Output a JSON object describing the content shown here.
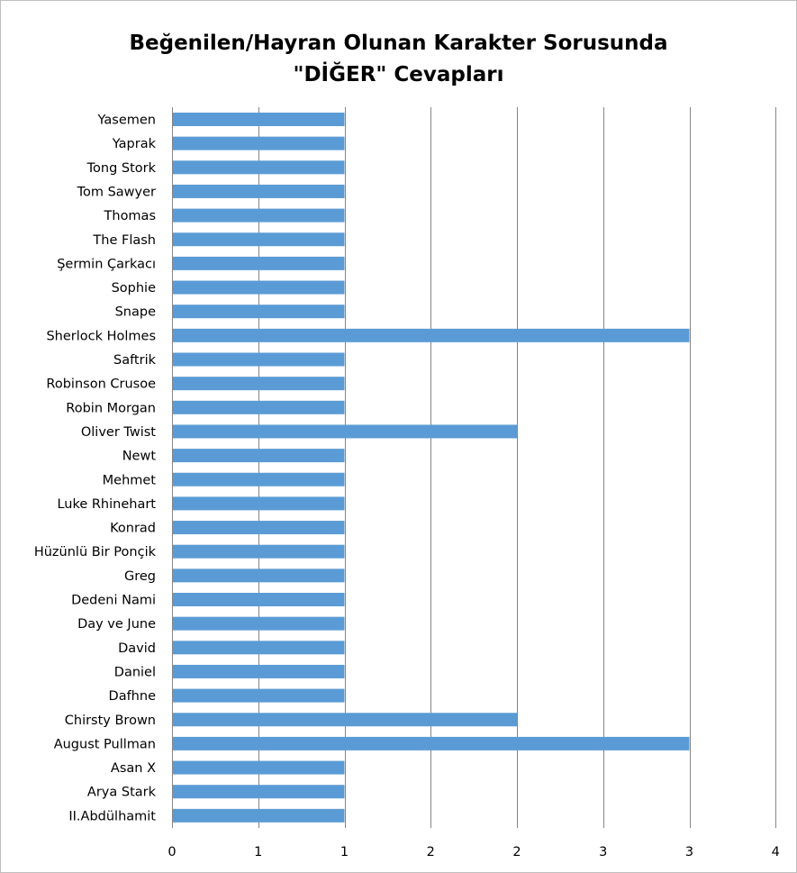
{
  "chart_data": {
    "type": "bar",
    "orientation": "horizontal",
    "title_line1": "Beğenilen/Hayran Olunan Karakter Sorusunda",
    "title_line2": "\"DİĞER\" Cevapları",
    "categories": [
      "Yasemen",
      "Yaprak",
      "Tong Stork",
      "Tom Sawyer",
      "Thomas",
      "The Flash",
      "Şermin Çarkacı",
      "Sophie",
      "Snape",
      "Sherlock Holmes",
      "Saftrik",
      "Robinson Crusoe",
      "Robin Morgan",
      "Oliver Twist",
      "Newt",
      "Mehmet",
      "Luke Rhinehart",
      "Konrad",
      "Hüzünlü Bir Ponçik",
      "Greg",
      "Dedeni Nami",
      "Day ve June",
      "David",
      "Daniel",
      "Dafhne",
      "Chirsty Brown",
      "August Pullman",
      "Asan X",
      "Arya Stark",
      "II.Abdülhamit"
    ],
    "values": [
      1,
      1,
      1,
      1,
      1,
      1,
      1,
      1,
      1,
      3,
      1,
      1,
      1,
      2,
      1,
      1,
      1,
      1,
      1,
      1,
      1,
      1,
      1,
      1,
      1,
      2,
      3,
      1,
      1,
      1
    ],
    "x_tick_labels": [
      "0",
      "1",
      "1",
      "2",
      "2",
      "3",
      "3",
      "4"
    ],
    "xlim": [
      0,
      3.5
    ],
    "x_tick_step": 0.5,
    "grid": "vertical",
    "bar_color": "#5b9bd5",
    "gridline_color": "#868686"
  }
}
